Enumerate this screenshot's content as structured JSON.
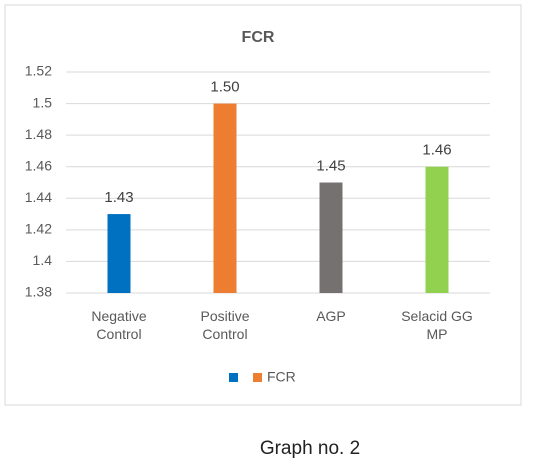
{
  "chart_data": {
    "type": "bar",
    "title": "FCR",
    "categories": [
      "Negative Control",
      "Positive Control",
      "AGP",
      "Selacid GG MP"
    ],
    "series": [
      {
        "name": "FCR",
        "colors": [
          "#0070c0",
          "#ed7d31",
          "#767171",
          "#92d050"
        ],
        "values": [
          1.43,
          1.5,
          1.45,
          1.46
        ],
        "value_labels": [
          "1.43",
          "1.50",
          "1.45",
          "1.46"
        ]
      }
    ],
    "ylim": [
      1.38,
      1.52
    ],
    "yticks": [
      1.38,
      1.4,
      1.42,
      1.44,
      1.46,
      1.48,
      1.5,
      1.52
    ],
    "grid": true,
    "legend": "bottom"
  },
  "caption": "Graph no. 2"
}
